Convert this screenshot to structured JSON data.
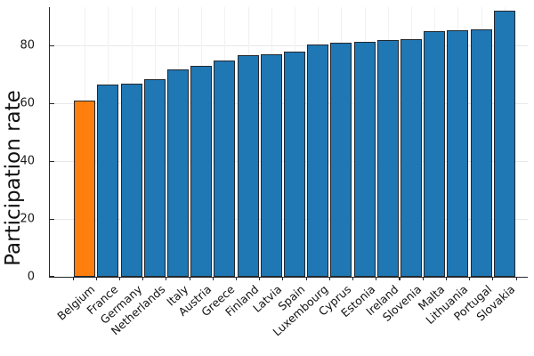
{
  "chart_data": {
    "type": "bar",
    "title": "",
    "xlabel": "",
    "ylabel": "Participation rate",
    "categories": [
      "Belgium",
      "France",
      "Germany",
      "Netherlands",
      "Italy",
      "Austria",
      "Greece",
      "Finland",
      "Latvia",
      "Spain",
      "Luxembourg",
      "Cyprus",
      "Estonia",
      "Ireland",
      "Slovenia",
      "Malta",
      "Lithuania",
      "Portugal",
      "Slovakia"
    ],
    "values": [
      60.9,
      66.7,
      66.9,
      68.3,
      71.9,
      73.2,
      74.8,
      76.8,
      77.1,
      77.9,
      80.6,
      81.2,
      81.5,
      81.9,
      82.3,
      85.2,
      85.5,
      85.8,
      92.3
    ],
    "highlight_category": "Belgium",
    "highlight_index": 0,
    "yticks": [
      0,
      20,
      40,
      60,
      80
    ],
    "ylim": [
      0,
      93.4
    ],
    "grid": true,
    "legend_position": "none",
    "colors": {
      "bar": "#1f77b4",
      "highlight": "#ff7f0e",
      "bar_edge": "#22272e",
      "grid_h": "#e8e8e8",
      "grid_v": "#f1f1f1",
      "axis": "#24272b",
      "text": "#111111",
      "background": "#ffffff"
    }
  }
}
